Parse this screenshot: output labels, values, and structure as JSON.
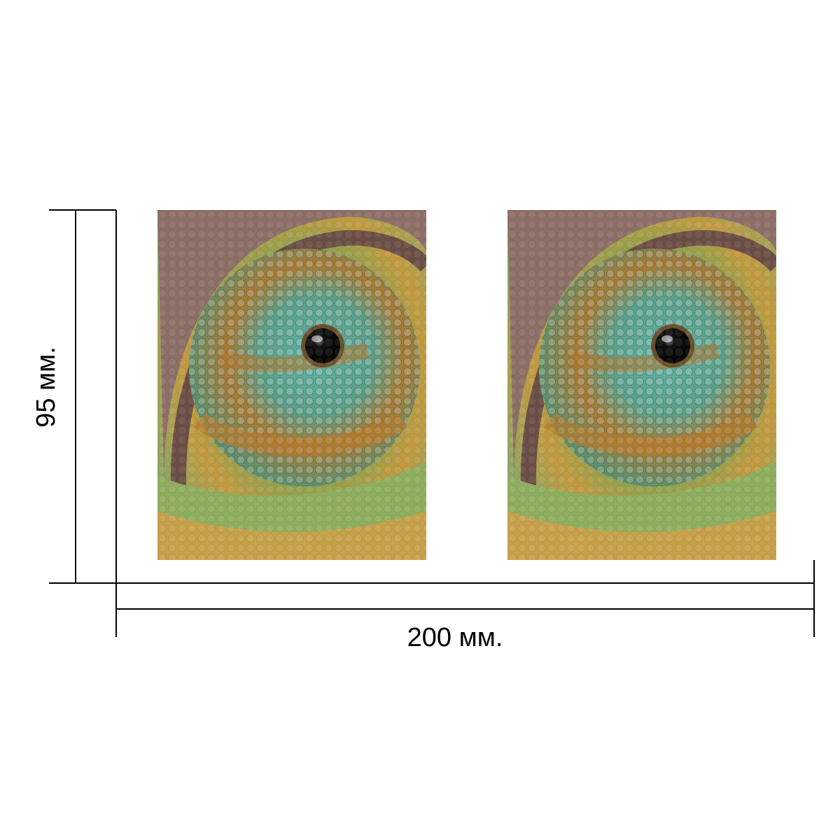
{
  "dimensions": {
    "width_label": "200 мм.",
    "height_label": "95 мм."
  },
  "panels": [
    {
      "subject": "chameleon-eye-photo"
    },
    {
      "subject": "chameleon-eye-photo"
    }
  ],
  "colors": {
    "background": "#ffffff",
    "lines": "#000000",
    "scale_green": "#6fa86a",
    "scale_teal": "#5fa8a0",
    "scale_orange": "#d89a3a",
    "scale_brown": "#8a6a5a"
  }
}
